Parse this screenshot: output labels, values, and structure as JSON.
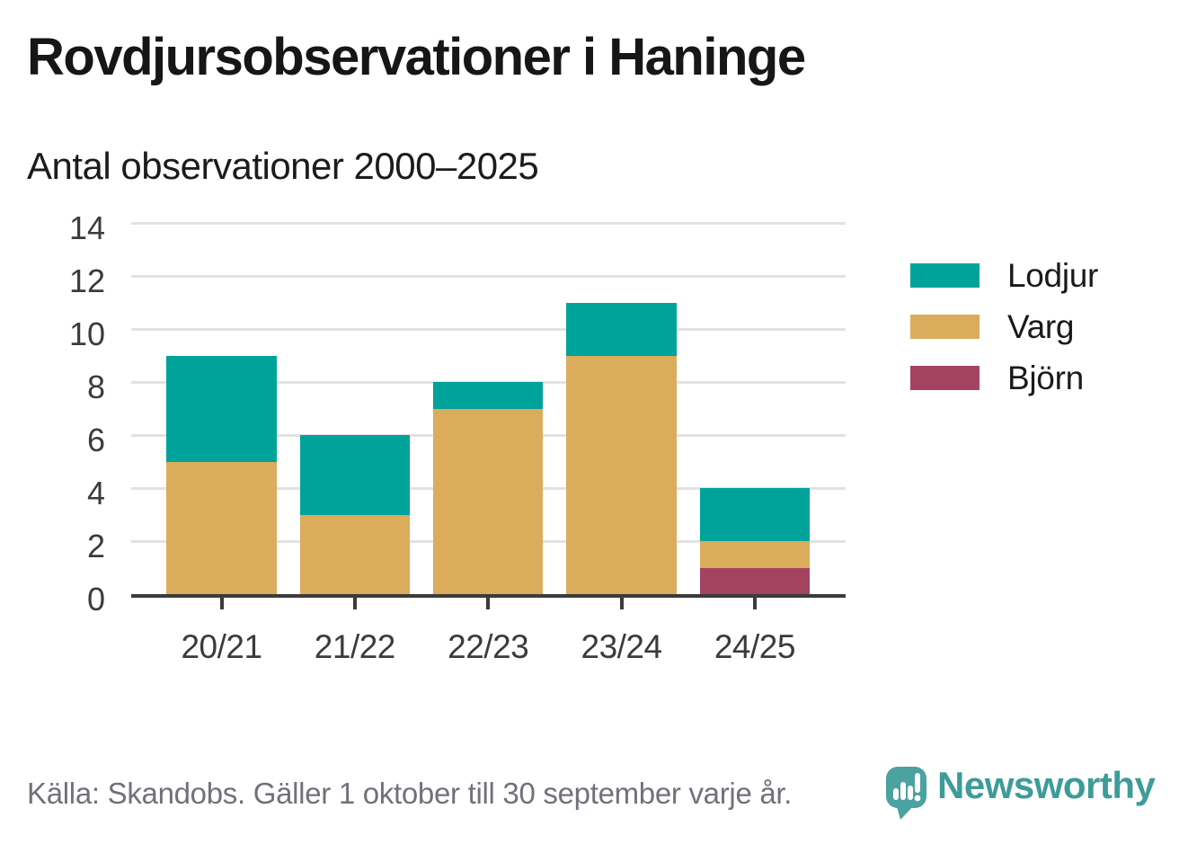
{
  "chart_data": {
    "type": "bar",
    "stacked": true,
    "title": "Rovdjursobservationer i Haninge",
    "subtitle": "Antal observationer 2000–2025",
    "categories": [
      "20/21",
      "21/22",
      "22/23",
      "23/24",
      "24/25"
    ],
    "series": [
      {
        "name": "Lodjur",
        "color": "#00A39A",
        "values": [
          4,
          3,
          1,
          2,
          2
        ]
      },
      {
        "name": "Varg",
        "color": "#DBAC5C",
        "values": [
          5,
          3,
          7,
          9,
          1
        ]
      },
      {
        "name": "Björn",
        "color": "#A4435F",
        "values": [
          0,
          0,
          0,
          0,
          1
        ]
      }
    ],
    "stack_order_bottom_to_top": [
      "Björn",
      "Varg",
      "Lodjur"
    ],
    "totals": [
      9,
      6,
      8,
      11,
      4
    ],
    "y_ticks": [
      0,
      2,
      4,
      6,
      8,
      10,
      12,
      14
    ],
    "ylim": [
      0,
      14
    ],
    "xlabel": "",
    "ylabel": "",
    "grid": true,
    "gridline_color": "#E2E2E2",
    "axis_color": "#3B3B3B",
    "legend_position": "right"
  },
  "footer": {
    "source_text": "Källa: Skandobs. Gäller 1 oktober till 30 september varje år."
  },
  "branding": {
    "logo_text": "Newsworthy",
    "logo_text_color": "#3D9C98",
    "logo_mark_color": "#4BA2A0"
  }
}
